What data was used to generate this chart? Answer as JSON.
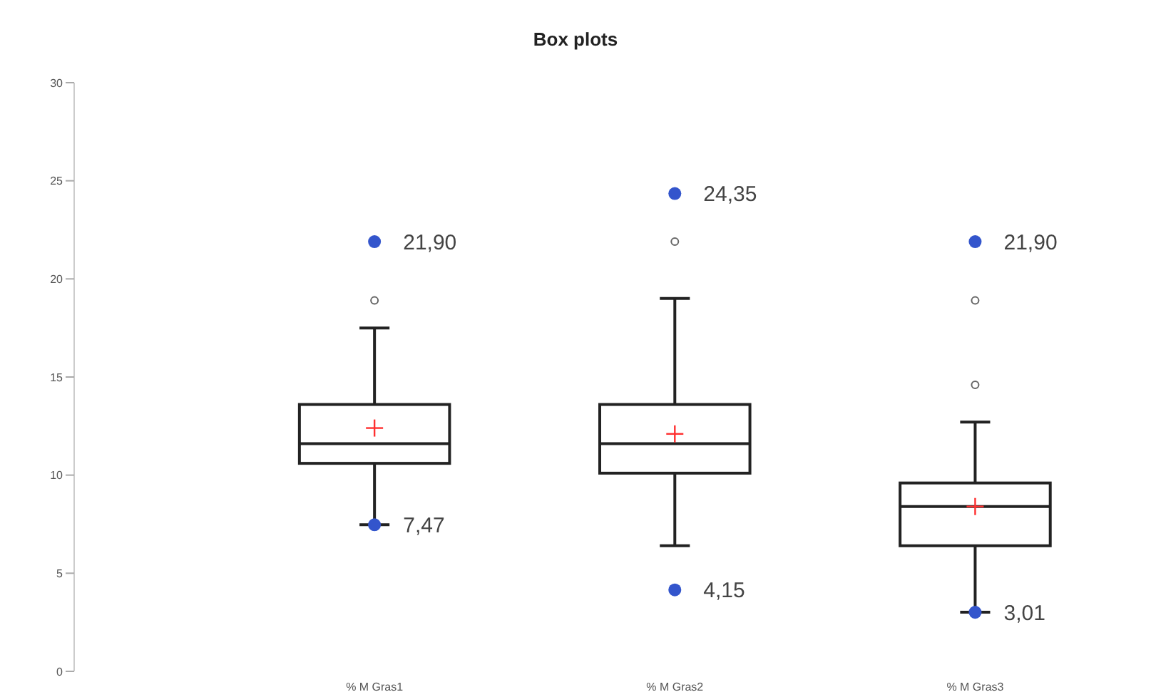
{
  "chart_data": {
    "type": "box",
    "title": "Box plots",
    "categories": [
      "% M Gras1",
      "% M Gras2",
      "% M Gras3"
    ],
    "boxes": [
      {
        "low": 7.47,
        "q1": 10.6,
        "median": 11.6,
        "q3": 13.6,
        "high": 17.5,
        "mean": 12.4,
        "outliers": [
          18.9
        ]
      },
      {
        "low": 6.4,
        "q1": 10.1,
        "median": 11.6,
        "q3": 13.6,
        "high": 19.0,
        "mean": 12.1,
        "outliers": [
          21.9
        ]
      },
      {
        "low": 3.01,
        "q1": 6.4,
        "median": 8.4,
        "q3": 9.6,
        "high": 12.7,
        "mean": 8.4,
        "outliers": [
          14.6,
          18.9
        ]
      }
    ],
    "series": [
      {
        "type": "scatter",
        "color": "#3355cc",
        "x": [
          "% M Gras1",
          "% M Gras1",
          "% M Gras2",
          "% M Gras2",
          "% M Gras3",
          "% M Gras3"
        ],
        "values": [
          21.9,
          7.47,
          24.35,
          4.15,
          21.9,
          3.01
        ],
        "value_labels": [
          "21,90",
          "7,47",
          "24,35",
          "4,15",
          "21,90",
          "3,01"
        ]
      }
    ],
    "ylim": [
      0,
      30
    ],
    "yticks": [
      0,
      5,
      10,
      15,
      20,
      25,
      30
    ],
    "grid": false,
    "legend": false,
    "marker": "circle"
  }
}
